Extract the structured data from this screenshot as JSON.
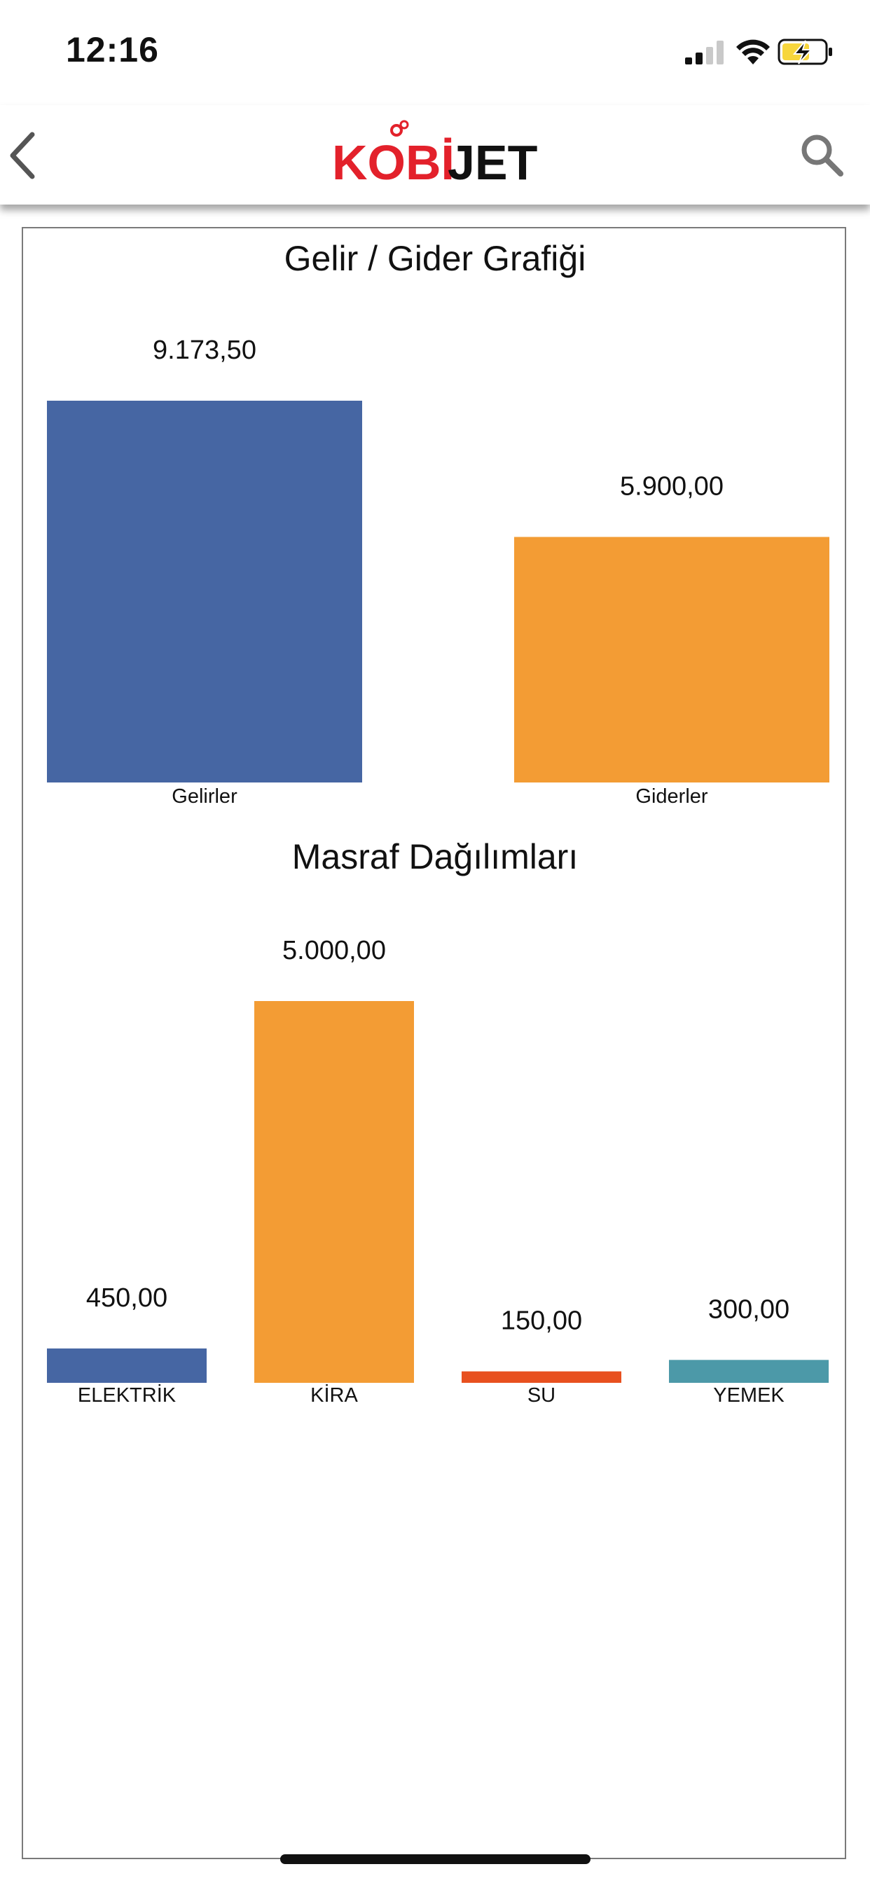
{
  "status_bar": {
    "time": "12:16"
  },
  "nav": {
    "logo_text_part1": "KOBİ",
    "logo_text_part2": "JET",
    "back_icon": "chevron-left-icon",
    "search_icon": "search-icon"
  },
  "colors": {
    "brand_red": "#e3212b",
    "blue": "#4666a3",
    "orange": "#f39c34",
    "red_orange": "#e8501f",
    "teal": "#4c99a8"
  },
  "chart_data": [
    {
      "type": "bar",
      "title": "Gelir / Gider Grafiği",
      "categories": [
        "Gelirler",
        "Giderler"
      ],
      "values": [
        9173.5,
        5900.0
      ],
      "value_labels": [
        "9.173,50",
        "5.900,00"
      ],
      "colors": [
        "#4666a3",
        "#f39c34"
      ],
      "xlabel": "",
      "ylabel": "",
      "ylim": [
        0,
        9173.5
      ],
      "grid": false,
      "legend": "none"
    },
    {
      "type": "bar",
      "title": "Masraf Dağılımları",
      "categories": [
        "ELEKTRİK",
        "KİRA",
        "SU",
        "YEMEK"
      ],
      "values": [
        450.0,
        5000.0,
        150.0,
        300.0
      ],
      "value_labels": [
        "450,00",
        "5.000,00",
        "150,00",
        "300,00"
      ],
      "colors": [
        "#4666a3",
        "#f39c34",
        "#e8501f",
        "#4c99a8"
      ],
      "xlabel": "",
      "ylabel": "",
      "ylim": [
        0,
        5000.0
      ],
      "grid": false,
      "legend": "none"
    }
  ]
}
